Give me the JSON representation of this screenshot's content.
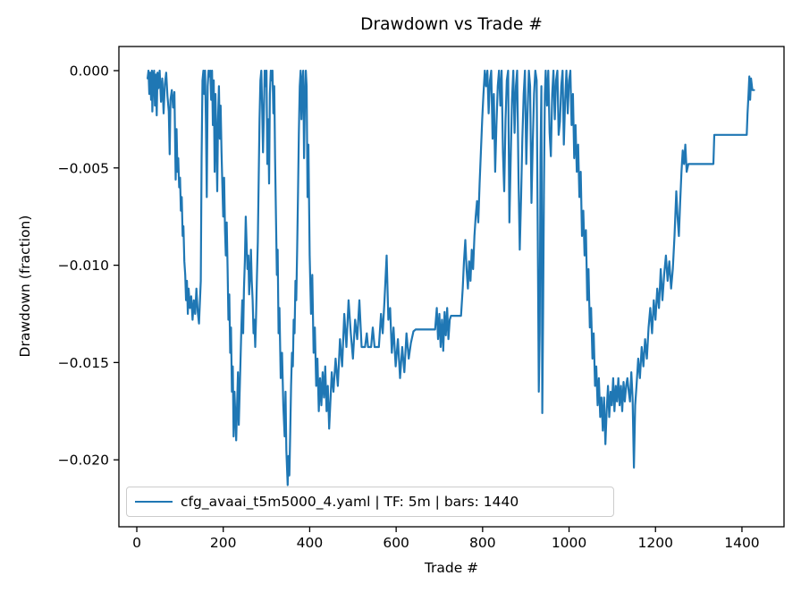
{
  "title": "Drawdown vs Trade #",
  "xlabel": "Trade #",
  "ylabel": "Drawdown (fraction)",
  "legend": {
    "label": "cfg_avaai_t5m5000_4.yaml | TF: 5m | bars: 1440",
    "position": "lower left"
  },
  "colors": {
    "line": "#1f77b4",
    "spine": "#000000",
    "tick_text": "#000000",
    "legend_border": "#cccccc",
    "background": "#ffffff"
  },
  "chart_data": {
    "type": "line",
    "title": "Drawdown vs Trade #",
    "xlabel": "Trade #",
    "ylabel": "Drawdown (fraction)",
    "grid": false,
    "legend_position": "lower left",
    "legend_entries": [
      "cfg_avaai_t5m5000_4.yaml | TF: 5m | bars: 1440"
    ],
    "x_ticks": [
      0,
      200,
      400,
      600,
      800,
      1000,
      1200,
      1400
    ],
    "x_tick_labels": [
      "0",
      "200",
      "400",
      "600",
      "800",
      "1000",
      "1200",
      "1400"
    ],
    "y_ticks": [
      0.0,
      -0.005,
      -0.01,
      -0.015,
      -0.02
    ],
    "y_tick_labels": [
      "0.000",
      "−0.005",
      "−0.010",
      "−0.015",
      "−0.020"
    ],
    "xlim": [
      -41.4,
      1497.3
    ],
    "ylim": [
      -0.02344,
      0.00124
    ],
    "series": [
      {
        "name": "cfg_avaai_t5m5000_4.yaml | TF: 5m | bars: 1440",
        "color": "#1f77b4",
        "x": [
          25,
          27,
          29,
          31,
          33,
          35,
          36,
          38,
          40,
          42,
          44,
          46,
          48,
          50,
          53,
          56,
          59,
          62,
          65,
          68,
          71,
          74,
          76,
          78,
          81,
          84,
          87,
          90,
          92,
          94,
          96,
          98,
          100,
          102,
          104,
          106,
          108,
          110,
          112,
          114,
          116,
          118,
          120,
          123,
          126,
          129,
          132,
          135,
          138,
          141,
          144,
          146,
          148,
          150,
          152,
          154,
          156,
          158,
          160,
          162,
          164,
          166,
          168,
          170,
          172,
          174,
          176,
          178,
          180,
          182,
          184,
          186,
          188,
          190,
          192,
          194,
          196,
          198,
          200,
          202,
          204,
          206,
          208,
          210,
          212,
          214,
          216,
          218,
          220,
          222,
          224,
          226,
          228,
          230,
          232,
          234,
          236,
          238,
          240,
          242,
          244,
          246,
          248,
          250,
          252,
          254,
          256,
          258,
          260,
          262,
          264,
          266,
          268,
          270,
          272,
          274,
          276,
          278,
          280,
          282,
          284,
          286,
          288,
          290,
          292,
          294,
          296,
          298,
          300,
          302,
          304,
          306,
          308,
          310,
          312,
          314,
          316,
          318,
          320,
          322,
          324,
          326,
          328,
          330,
          333,
          336,
          339,
          342,
          344,
          346,
          349,
          351,
          353,
          355,
          357,
          359,
          361,
          363,
          365,
          367,
          369,
          371,
          373,
          375,
          377,
          379,
          381,
          383,
          385,
          387,
          389,
          391,
          393,
          395,
          397,
          400,
          403,
          406,
          409,
          412,
          415,
          418,
          421,
          424,
          427,
          430,
          433,
          436,
          439,
          442,
          445,
          448,
          451,
          455,
          460,
          465,
          470,
          475,
          480,
          485,
          490,
          495,
          500,
          505,
          510,
          515,
          520,
          524,
          528,
          532,
          535,
          542,
          546,
          550,
          556,
          560,
          565,
          569,
          573,
          578,
          582,
          586,
          590,
          594,
          599,
          604,
          609,
          614,
          619,
          624,
          629,
          634,
          640,
          645,
          658,
          672,
          690,
          694,
          697,
          700,
          703,
          706,
          709,
          712,
          715,
          718,
          721,
          724,
          727,
          738,
          750,
          754,
          757,
          760,
          763,
          766,
          769,
          772,
          775,
          778,
          781,
          784,
          787,
          790,
          793,
          796,
          799,
          802,
          805,
          808,
          811,
          814,
          817,
          820,
          823,
          826,
          829,
          832,
          835,
          838,
          841,
          844,
          847,
          850,
          853,
          856,
          859,
          862,
          865,
          868,
          871,
          874,
          877,
          880,
          883,
          886,
          889,
          892,
          895,
          898,
          901,
          904,
          907,
          910,
          913,
          916,
          919,
          922,
          925,
          928,
          930,
          932,
          934,
          936,
          938,
          940,
          942,
          944,
          946,
          949,
          952,
          955,
          958,
          961,
          964,
          967,
          970,
          973,
          976,
          979,
          982,
          985,
          988,
          991,
          994,
          997,
          1000,
          1003,
          1006,
          1009,
          1012,
          1015,
          1018,
          1021,
          1024,
          1027,
          1030,
          1033,
          1036,
          1039,
          1042,
          1045,
          1048,
          1051,
          1054,
          1057,
          1060,
          1063,
          1066,
          1069,
          1072,
          1075,
          1078,
          1081,
          1084,
          1087,
          1090,
          1093,
          1096,
          1099,
          1102,
          1105,
          1108,
          1111,
          1114,
          1117,
          1120,
          1123,
          1126,
          1129,
          1132,
          1135,
          1138,
          1141,
          1144,
          1147,
          1150,
          1153,
          1156,
          1160,
          1164,
          1168,
          1172,
          1176,
          1180,
          1184,
          1188,
          1192,
          1196,
          1200,
          1204,
          1208,
          1212,
          1216,
          1220,
          1224,
          1228,
          1232,
          1236,
          1240,
          1244,
          1248,
          1251,
          1254,
          1257,
          1260,
          1263,
          1266,
          1269,
          1272,
          1276,
          1280,
          1300,
          1320,
          1334,
          1336,
          1360,
          1385,
          1411,
          1413,
          1415,
          1417,
          1419,
          1421,
          1424,
          1428
        ],
        "y": [
          -0.0004,
          0,
          -0.0012,
          -0.0001,
          -0.0015,
          0,
          -0.0021,
          -0.0003,
          0,
          -0.0018,
          -0.0002,
          -0.0023,
          -0.0001,
          -0.0009,
          0,
          -0.0016,
          -0.0004,
          -0.0022,
          -0.0007,
          -0.0001,
          -0.0013,
          -0.0021,
          -0.0043,
          -0.0015,
          -0.001,
          -0.0019,
          -0.0011,
          -0.0056,
          -0.003,
          -0.0052,
          -0.0045,
          -0.006,
          -0.0055,
          -0.0072,
          -0.0065,
          -0.0085,
          -0.008,
          -0.0098,
          -0.0105,
          -0.0118,
          -0.0108,
          -0.0125,
          -0.0112,
          -0.0122,
          -0.0116,
          -0.0128,
          -0.0118,
          -0.0125,
          -0.0112,
          -0.0124,
          -0.013,
          -0.0119,
          -0.0108,
          -0.0045,
          -0.0005,
          0,
          -0.0012,
          0,
          -0.0028,
          -0.0065,
          -0.0008,
          0,
          -0.0003,
          0,
          -0.0015,
          0,
          -0.0028,
          -0.0005,
          -0.0052,
          -0.0012,
          -0.0035,
          -0.0062,
          -0.0025,
          -0.0008,
          -0.0035,
          -0.0018,
          -0.0042,
          -0.006,
          -0.0075,
          -0.0055,
          -0.0082,
          -0.0095,
          -0.0078,
          -0.0102,
          -0.0128,
          -0.0115,
          -0.0145,
          -0.0132,
          -0.0165,
          -0.0152,
          -0.0188,
          -0.0165,
          -0.0178,
          -0.019,
          -0.0172,
          -0.0155,
          -0.0182,
          -0.0165,
          -0.0148,
          -0.0132,
          -0.0118,
          -0.0135,
          -0.0112,
          -0.0098,
          -0.0075,
          -0.0088,
          -0.0102,
          -0.0095,
          -0.0115,
          -0.0105,
          -0.0092,
          -0.0108,
          -0.0118,
          -0.0135,
          -0.0128,
          -0.0142,
          -0.0125,
          -0.0106,
          -0.0088,
          -0.0055,
          -0.0025,
          -0.0005,
          0,
          -0.0018,
          -0.0042,
          -0.0022,
          0,
          -0.0008,
          0,
          -0.0048,
          -0.0025,
          -0.0058,
          -0.0012,
          0,
          -0.0005,
          0,
          -0.0022,
          -0.0008,
          -0.0045,
          -0.0075,
          -0.0105,
          -0.0092,
          -0.0135,
          -0.0122,
          -0.0158,
          -0.0145,
          -0.0172,
          -0.0188,
          -0.0165,
          -0.0195,
          -0.0213,
          -0.0198,
          -0.0208,
          -0.0185,
          -0.0162,
          -0.0145,
          -0.0152,
          -0.0128,
          -0.0135,
          -0.0108,
          -0.0118,
          -0.0092,
          -0.0062,
          -0.0032,
          -0.0008,
          0,
          -0.0025,
          -0.0005,
          0,
          -0.0045,
          -0.0015,
          0,
          -0.0008,
          -0.0065,
          -0.0038,
          -0.0095,
          -0.0125,
          -0.0105,
          -0.0145,
          -0.0132,
          -0.0162,
          -0.0148,
          -0.0175,
          -0.0158,
          -0.0172,
          -0.0155,
          -0.0168,
          -0.0152,
          -0.0175,
          -0.0162,
          -0.0184,
          -0.017,
          -0.0155,
          -0.0165,
          -0.0148,
          -0.0162,
          -0.0138,
          -0.0152,
          -0.0125,
          -0.0142,
          -0.0118,
          -0.0135,
          -0.0148,
          -0.0128,
          -0.0138,
          -0.0118,
          -0.0142,
          -0.0142,
          -0.0142,
          -0.0135,
          -0.0142,
          -0.0142,
          -0.0132,
          -0.0142,
          -0.0142,
          -0.0142,
          -0.0125,
          -0.0135,
          -0.0118,
          -0.0095,
          -0.0128,
          -0.0122,
          -0.0145,
          -0.0132,
          -0.0152,
          -0.0138,
          -0.0158,
          -0.0142,
          -0.0155,
          -0.0135,
          -0.0148,
          -0.014,
          -0.0134,
          -0.0133,
          -0.0133,
          -0.0133,
          -0.0133,
          -0.0122,
          -0.0138,
          -0.0125,
          -0.0142,
          -0.0128,
          -0.0144,
          -0.0124,
          -0.0136,
          -0.0122,
          -0.0138,
          -0.0128,
          -0.0126,
          -0.0126,
          -0.0126,
          -0.0112,
          -0.0098,
          -0.0087,
          -0.0102,
          -0.0112,
          -0.0098,
          -0.0108,
          -0.0092,
          -0.0102,
          -0.0085,
          -0.0075,
          -0.0067,
          -0.0078,
          -0.0058,
          -0.0042,
          -0.0025,
          -0.0012,
          0,
          -0.0008,
          0,
          -0.0022,
          -0.0005,
          0,
          -0.0035,
          -0.0012,
          -0.0052,
          -0.0028,
          -0.0008,
          0,
          -0.0018,
          0,
          -0.0042,
          -0.0062,
          -0.0025,
          -0.0005,
          0,
          -0.0078,
          -0.0045,
          -0.0015,
          0,
          -0.0032,
          -0.0008,
          0,
          -0.0055,
          -0.0092,
          -0.0065,
          -0.0035,
          -0.0012,
          0,
          -0.0048,
          -0.0022,
          0,
          -0.0008,
          -0.0068,
          -0.0038,
          -0.0012,
          0,
          -0.0005,
          -0.0095,
          -0.0165,
          -0.0135,
          -0.0045,
          -0.0008,
          -0.0176,
          -0.0125,
          -0.0058,
          -0.0012,
          0,
          -0.0018,
          0,
          -0.0032,
          -0.0044,
          -0.0012,
          0,
          -0.0025,
          -0.0005,
          0,
          -0.0033,
          -0.0026,
          -0.0008,
          0,
          -0.0038,
          -0.0015,
          0,
          -0.0022,
          -0.0005,
          0,
          -0.0028,
          -0.0012,
          -0.0045,
          -0.0028,
          -0.0052,
          -0.0038,
          -0.0065,
          -0.0052,
          -0.0085,
          -0.0072,
          -0.0095,
          -0.0082,
          -0.0118,
          -0.0102,
          -0.0132,
          -0.0122,
          -0.0148,
          -0.0135,
          -0.0162,
          -0.0152,
          -0.0172,
          -0.0158,
          -0.0178,
          -0.0168,
          -0.0185,
          -0.0168,
          -0.0192,
          -0.0175,
          -0.0162,
          -0.0178,
          -0.0165,
          -0.0172,
          -0.0158,
          -0.0175,
          -0.0162,
          -0.017,
          -0.0158,
          -0.0172,
          -0.0162,
          -0.0175,
          -0.016,
          -0.017,
          -0.0162,
          -0.0158,
          -0.0165,
          -0.017,
          -0.0155,
          -0.0168,
          -0.0204,
          -0.0172,
          -0.0162,
          -0.0148,
          -0.0158,
          -0.0142,
          -0.0152,
          -0.0138,
          -0.0148,
          -0.0132,
          -0.0122,
          -0.0135,
          -0.0118,
          -0.0128,
          -0.0112,
          -0.0122,
          -0.0102,
          -0.0118,
          -0.0105,
          -0.0095,
          -0.0108,
          -0.0098,
          -0.0112,
          -0.0102,
          -0.0085,
          -0.0062,
          -0.0075,
          -0.0085,
          -0.0068,
          -0.0052,
          -0.0041,
          -0.0048,
          -0.0038,
          -0.0052,
          -0.0048,
          -0.0048,
          -0.0048,
          -0.0048,
          -0.0048,
          -0.0033,
          -0.0033,
          -0.0033,
          -0.0033,
          -0.0022,
          -0.0013,
          -0.0003,
          -0.0015,
          -0.0004,
          -0.001,
          -0.001
        ]
      }
    ]
  }
}
